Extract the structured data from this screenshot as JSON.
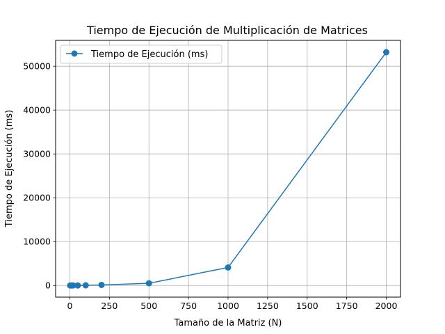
{
  "chart_data": {
    "type": "line",
    "title": "Tiempo de Ejecución de Multiplicación de Matrices",
    "xlabel": "Tamaño de la Matriz (N)",
    "ylabel": "Tiempo de Ejecución (ms)",
    "xlim": [
      -90,
      2090
    ],
    "ylim": [
      -2660,
      55900
    ],
    "xticks": [
      0,
      250,
      500,
      750,
      1000,
      1250,
      1500,
      1750,
      2000
    ],
    "yticks": [
      0,
      10000,
      20000,
      30000,
      40000,
      50000
    ],
    "grid": true,
    "legend_position": "top-left",
    "series": [
      {
        "name": "Tiempo de Ejecución (ms)",
        "color": "#1f77b4",
        "marker": "circle",
        "x": [
          2,
          10,
          20,
          50,
          100,
          200,
          500,
          1000,
          2000
        ],
        "y": [
          0,
          0,
          1,
          5,
          30,
          120,
          500,
          4100,
          53200
        ]
      }
    ]
  }
}
